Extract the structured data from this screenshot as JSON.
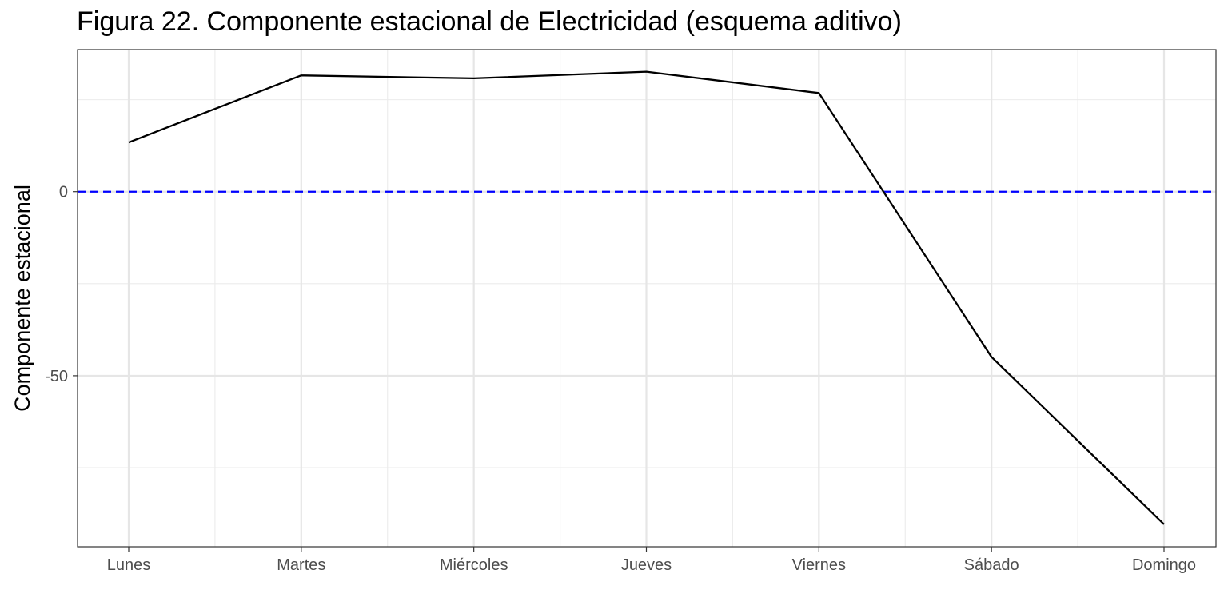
{
  "chart_data": {
    "type": "line",
    "title": "Figura 22. Componente estacional de Electricidad (esquema aditivo)",
    "xlabel": "",
    "ylabel": "Componente estacional",
    "categories": [
      "Lunes",
      "Martes",
      "Miércoles",
      "Jueves",
      "Viernes",
      "Sábado",
      "Domingo"
    ],
    "series": [
      {
        "values": [
          13.4,
          31.6,
          30.8,
          32.6,
          26.8,
          -44.9,
          -90.4
        ],
        "color": "#000000"
      }
    ],
    "reference_line": {
      "y": 0,
      "color": "#0000ff",
      "style": "dashed"
    },
    "y_ticks": [
      0,
      -50
    ],
    "ylim": [
      -96.5,
      38.6
    ],
    "grid": true
  }
}
